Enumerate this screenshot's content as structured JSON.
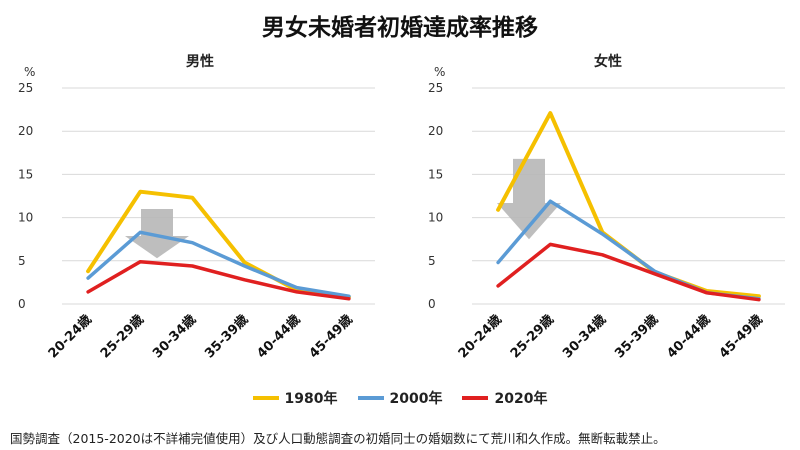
{
  "title": "男女未婚者初婚達成率推移",
  "source": "国勢調査（2015-2020は不詳補完値使用）及び人口動態調査の初婚同士の婚姻数にて荒川和久作成。無断転載禁止。",
  "colors": {
    "1980年": "#F5C000",
    "2000年": "#5B9BD5",
    "2020年": "#E02020",
    "arrow": "#B7B7B7",
    "grid": "#D9D9D9"
  },
  "chart_data": [
    {
      "type": "line",
      "title": "男性",
      "ylabel": "%",
      "ylim": [
        0,
        25
      ],
      "yticks": [
        "0",
        "5",
        "10",
        "15",
        "20",
        "25"
      ],
      "categories": [
        "20-24歳",
        "25-29歳",
        "30-34歳",
        "35-39歳",
        "40-44歳",
        "45-49歳"
      ],
      "series": [
        {
          "name": "1980年",
          "values": [
            3.8,
            13.0,
            12.3,
            4.8,
            1.6,
            0.8
          ]
        },
        {
          "name": "2000年",
          "values": [
            3.0,
            8.3,
            7.1,
            4.4,
            1.9,
            0.9
          ]
        },
        {
          "name": "2020年",
          "values": [
            1.4,
            4.9,
            4.4,
            2.8,
            1.4,
            0.6
          ]
        }
      ],
      "legend": "bottom",
      "grid": true
    },
    {
      "type": "line",
      "title": "女性",
      "ylabel": "%",
      "ylim": [
        0,
        25
      ],
      "yticks": [
        "0",
        "5",
        "10",
        "15",
        "20",
        "25"
      ],
      "categories": [
        "20-24歳",
        "25-29歳",
        "30-34歳",
        "35-39歳",
        "40-44歳",
        "45-49歳"
      ],
      "series": [
        {
          "name": "1980年",
          "values": [
            10.9,
            22.1,
            8.3,
            3.7,
            1.5,
            0.9
          ]
        },
        {
          "name": "2000年",
          "values": [
            4.8,
            11.9,
            8.1,
            3.8,
            1.3,
            0.6
          ]
        },
        {
          "name": "2020年",
          "values": [
            2.1,
            6.9,
            5.7,
            3.5,
            1.3,
            0.5
          ]
        }
      ],
      "legend": "bottom",
      "grid": true
    }
  ],
  "legend_items": [
    "1980年",
    "2000年",
    "2020年"
  ]
}
